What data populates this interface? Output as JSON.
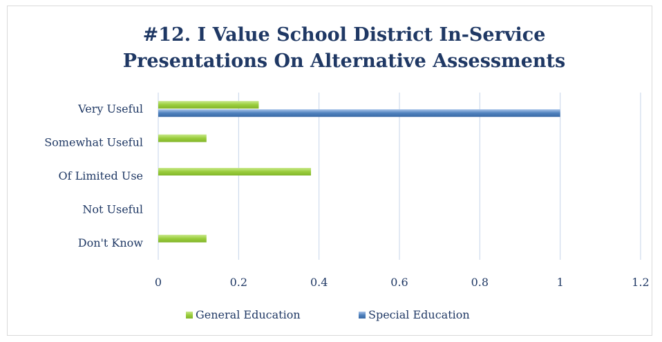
{
  "chart_data": {
    "type": "bar",
    "orientation": "horizontal",
    "title": [
      "#12. I Value School District In-Service",
      "Presentations On Alternative Assessments"
    ],
    "categories": [
      "Very Useful",
      "Somewhat Useful",
      "Of Limited Use",
      "Not Useful",
      "Don't Know"
    ],
    "series": [
      {
        "name": "General Education",
        "values": [
          0.25,
          0.12,
          0.38,
          0,
          0.12
        ],
        "color": "#9acd3c"
      },
      {
        "name": "Special Education",
        "values": [
          1.0,
          0,
          0,
          0,
          0
        ],
        "color": "#4f81bd"
      }
    ],
    "xlim": [
      0,
      1.2
    ],
    "xticks": [
      0,
      0.2,
      0.4,
      0.6,
      0.8,
      1,
      1.2
    ],
    "xtick_labels": [
      "0",
      "0.2",
      "0.4",
      "0.6",
      "0.8",
      "1",
      "1.2"
    ],
    "grid": true,
    "legend_position": "bottom",
    "title_color": "#1f3864",
    "text_color": "#1f3864",
    "gridline_color": "#c5d3e8"
  }
}
